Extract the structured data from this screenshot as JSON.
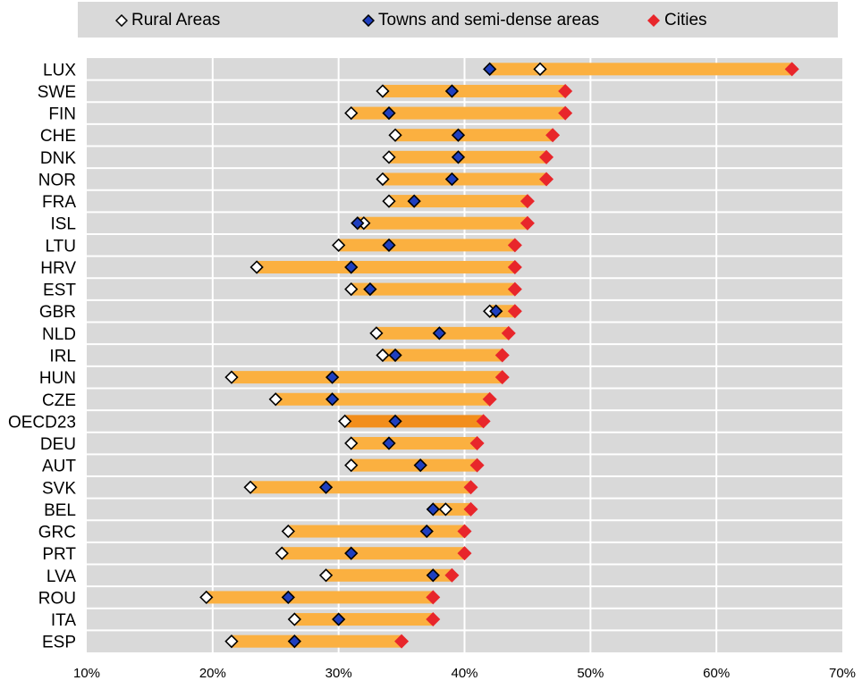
{
  "colors": {
    "rural_fill": "#ffffff",
    "town_fill": "#1f3fbf",
    "city_fill": "#e8262b",
    "bar": "#fbb040",
    "bar_highlight": "#f28e1c",
    "plot_bg": "#d9d9d9"
  },
  "chart_data": {
    "type": "dot-range",
    "legend_position": "top",
    "grid": true,
    "xlim": [
      0.1,
      0.7
    ],
    "x_ticks": [
      "10%",
      "20%",
      "30%",
      "40%",
      "50%",
      "60%",
      "70%"
    ],
    "series": [
      {
        "name": "Rural Areas",
        "marker": "white-diamond"
      },
      {
        "name": "Towns and semi-dense areas",
        "marker": "blue-diamond"
      },
      {
        "name": "Cities",
        "marker": "red-diamond"
      }
    ],
    "highlight_category": "OECD23",
    "rows": [
      {
        "country": "LUX",
        "rural": 0.46,
        "towns": 0.42,
        "cities": 0.66
      },
      {
        "country": "SWE",
        "rural": 0.335,
        "towns": 0.39,
        "cities": 0.48
      },
      {
        "country": "FIN",
        "rural": 0.31,
        "towns": 0.34,
        "cities": 0.48
      },
      {
        "country": "CHE",
        "rural": 0.345,
        "towns": 0.395,
        "cities": 0.47
      },
      {
        "country": "DNK",
        "rural": 0.34,
        "towns": 0.395,
        "cities": 0.465
      },
      {
        "country": "NOR",
        "rural": 0.335,
        "towns": 0.39,
        "cities": 0.465
      },
      {
        "country": "FRA",
        "rural": 0.34,
        "towns": 0.36,
        "cities": 0.45
      },
      {
        "country": "ISL",
        "rural": 0.32,
        "towns": 0.315,
        "cities": 0.45
      },
      {
        "country": "LTU",
        "rural": 0.3,
        "towns": 0.34,
        "cities": 0.44
      },
      {
        "country": "HRV",
        "rural": 0.235,
        "towns": 0.31,
        "cities": 0.44
      },
      {
        "country": "EST",
        "rural": 0.31,
        "towns": 0.325,
        "cities": 0.44
      },
      {
        "country": "GBR",
        "rural": 0.42,
        "towns": 0.425,
        "cities": 0.44
      },
      {
        "country": "NLD",
        "rural": 0.33,
        "towns": 0.38,
        "cities": 0.435
      },
      {
        "country": "IRL",
        "rural": 0.335,
        "towns": 0.345,
        "cities": 0.43
      },
      {
        "country": "HUN",
        "rural": 0.215,
        "towns": 0.295,
        "cities": 0.43
      },
      {
        "country": "CZE",
        "rural": 0.25,
        "towns": 0.295,
        "cities": 0.42
      },
      {
        "country": "OECD23",
        "rural": 0.305,
        "towns": 0.345,
        "cities": 0.415
      },
      {
        "country": "DEU",
        "rural": 0.31,
        "towns": 0.34,
        "cities": 0.41
      },
      {
        "country": "AUT",
        "rural": 0.31,
        "towns": 0.365,
        "cities": 0.41
      },
      {
        "country": "SVK",
        "rural": 0.23,
        "towns": 0.29,
        "cities": 0.405
      },
      {
        "country": "BEL",
        "rural": 0.385,
        "towns": 0.375,
        "cities": 0.405
      },
      {
        "country": "GRC",
        "rural": 0.26,
        "towns": 0.37,
        "cities": 0.4
      },
      {
        "country": "PRT",
        "rural": 0.255,
        "towns": 0.31,
        "cities": 0.4
      },
      {
        "country": "LVA",
        "rural": 0.29,
        "towns": 0.375,
        "cities": 0.39
      },
      {
        "country": "ROU",
        "rural": 0.195,
        "towns": 0.26,
        "cities": 0.375
      },
      {
        "country": "ITA",
        "rural": 0.265,
        "towns": 0.3,
        "cities": 0.375
      },
      {
        "country": "ESP",
        "rural": 0.215,
        "towns": 0.265,
        "cities": 0.35
      }
    ]
  }
}
